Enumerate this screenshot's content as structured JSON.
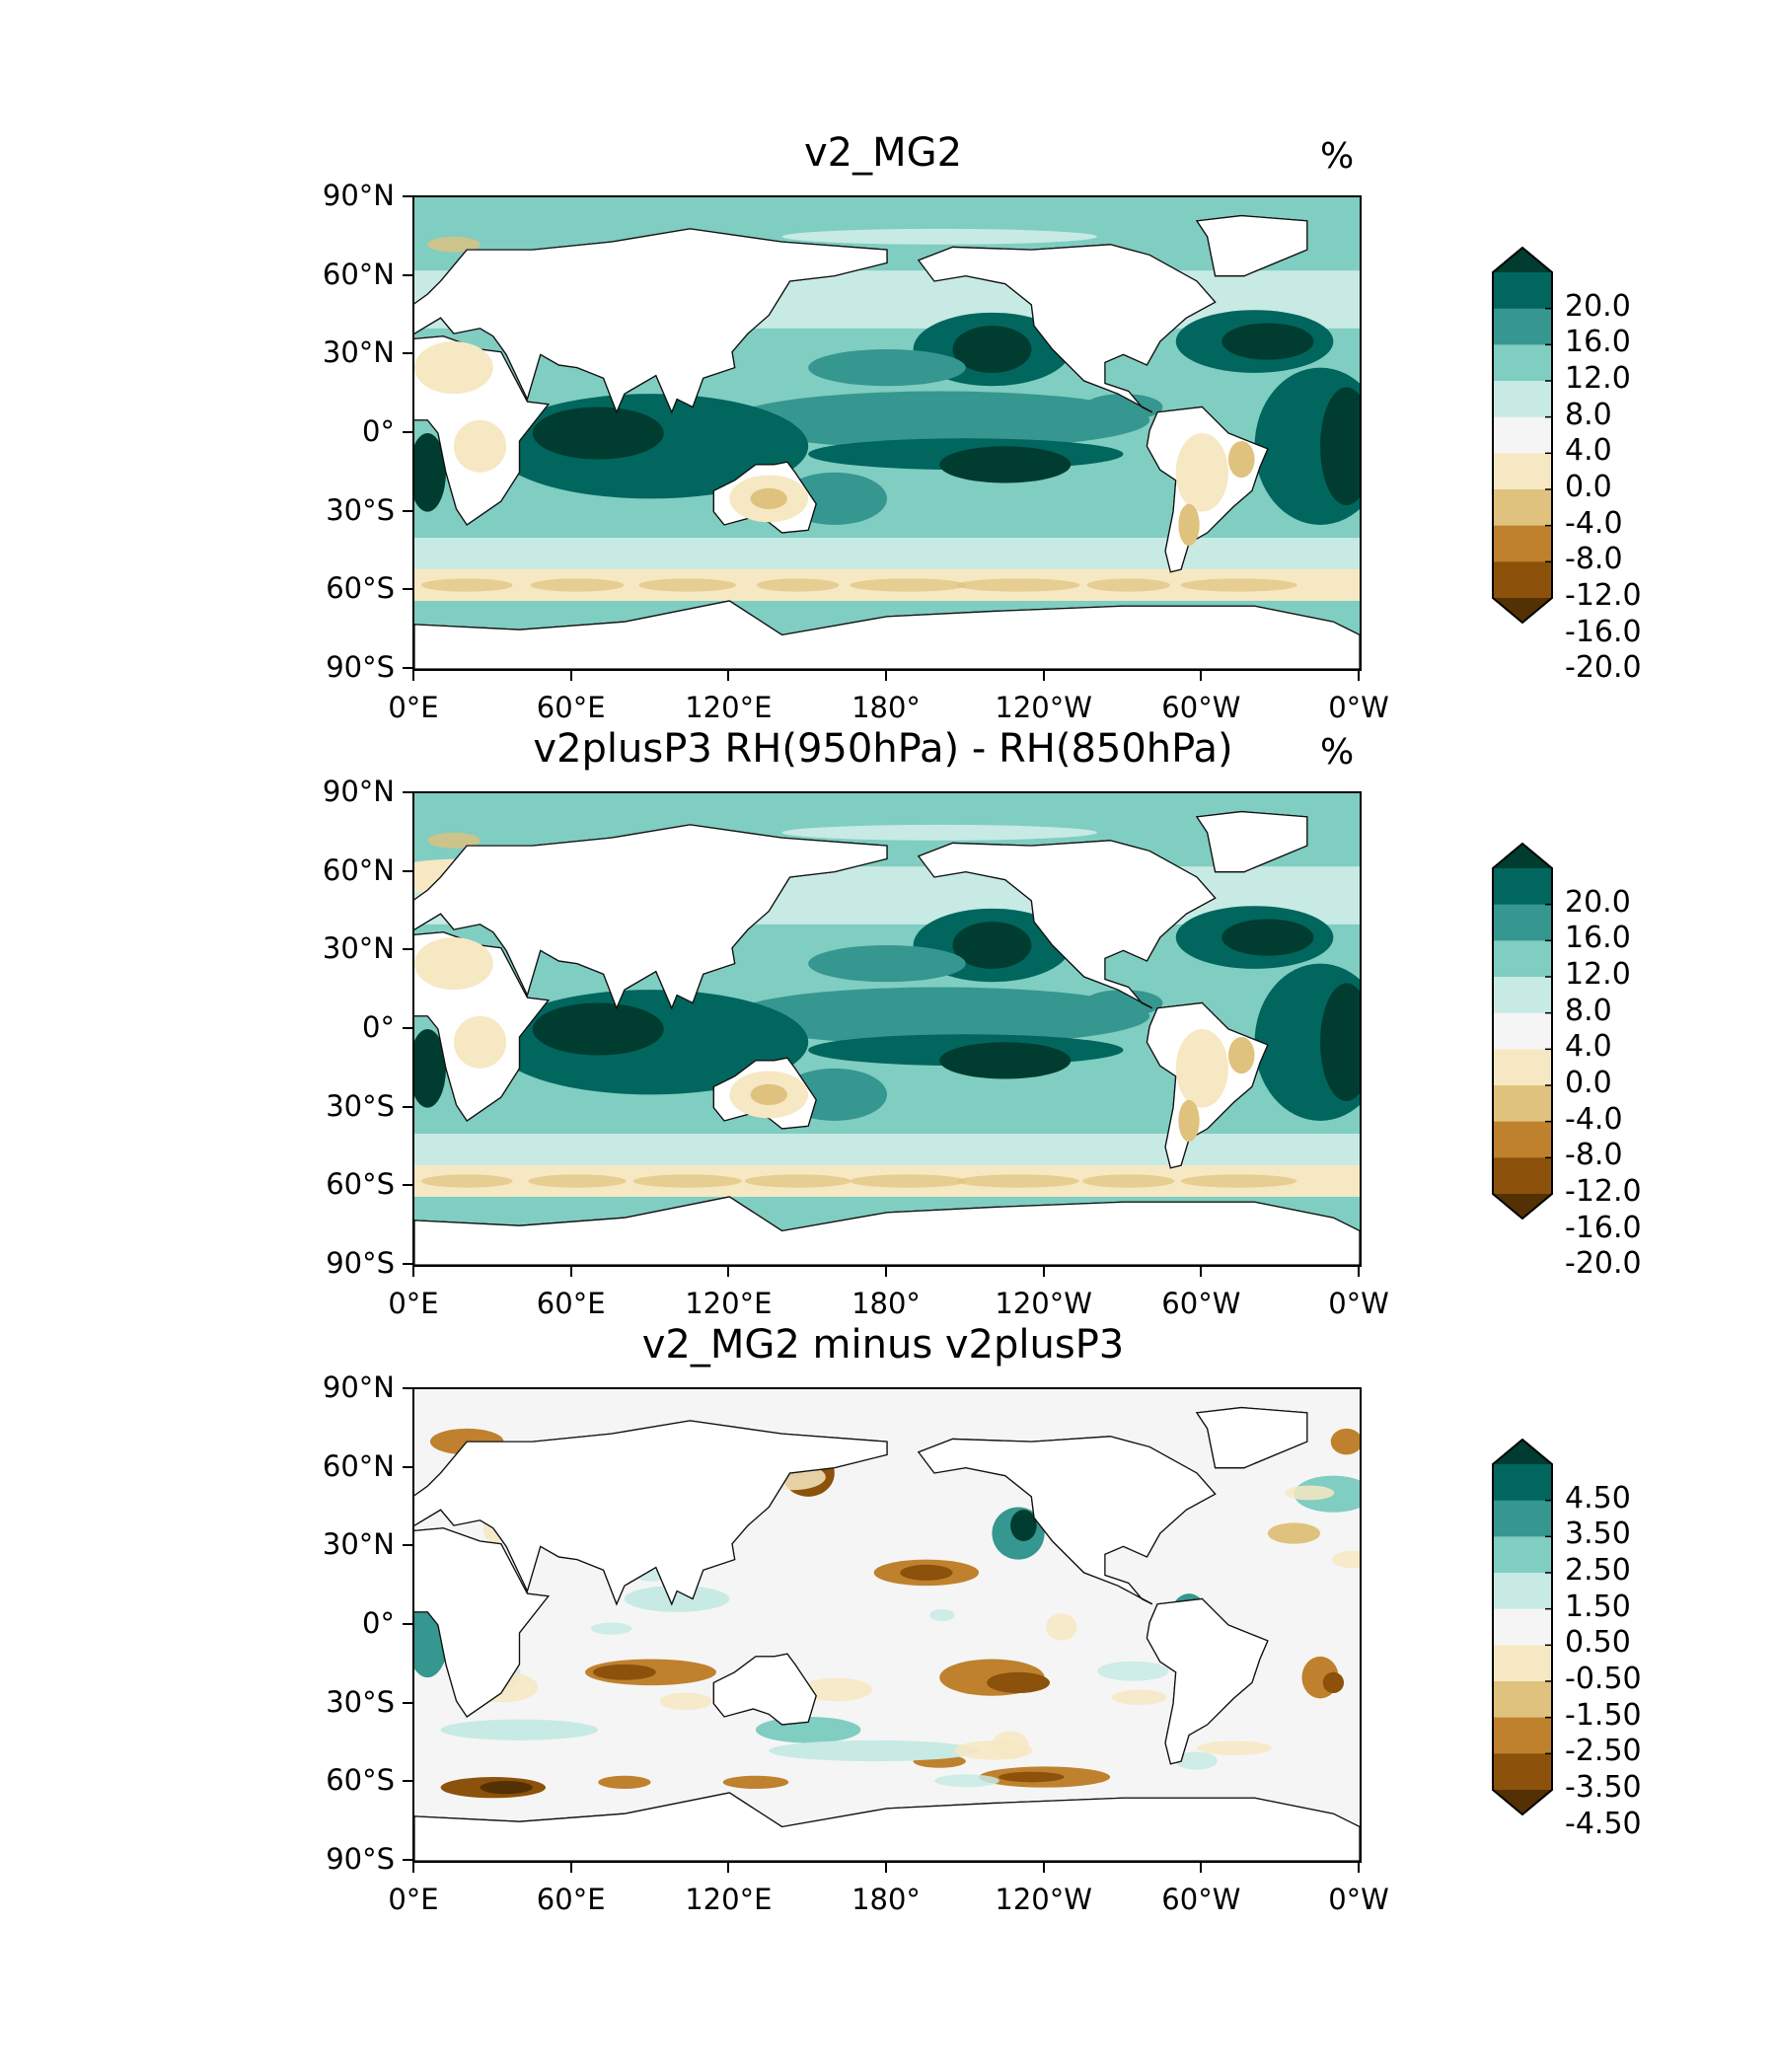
{
  "panels": [
    {
      "title": "v2_MG2",
      "unit": "%",
      "kind": "top"
    },
    {
      "title": "v2plusP3 RH(950hPa) - RH(850hPa)",
      "unit": "%",
      "kind": "mid"
    },
    {
      "title": "v2_MG2 minus v2plusP3",
      "unit": "",
      "kind": "diff"
    }
  ],
  "axes": {
    "lat_labels": [
      "90°N",
      "60°N",
      "30°N",
      "0°",
      "30°S",
      "60°S",
      "90°S"
    ],
    "lon_labels": [
      "0°E",
      "60°E",
      "120°E",
      "180°",
      "120°W",
      "60°W",
      "0°W"
    ]
  },
  "colorbars": {
    "main": {
      "labels": [
        "20.0",
        "16.0",
        "12.0",
        "8.0",
        "4.0",
        "0.0",
        "-4.0",
        "-8.0",
        "-12.0",
        "-16.0",
        "-20.0"
      ],
      "colors": [
        "#003c30",
        "#01665e",
        "#35978f",
        "#80cdc1",
        "#c7eae5",
        "#f5f5f5",
        "#f6e8c3",
        "#dfc27d",
        "#bf812d",
        "#8c510a",
        "#543005"
      ]
    },
    "diff": {
      "labels": [
        "4.50",
        "3.50",
        "2.50",
        "1.50",
        "0.50",
        "-0.50",
        "-1.50",
        "-2.50",
        "-3.50",
        "-4.50"
      ],
      "colors": [
        "#003c30",
        "#01665e",
        "#35978f",
        "#80cdc1",
        "#c7eae5",
        "#f5f5f5",
        "#f6e8c3",
        "#dfc27d",
        "#bf812d",
        "#8c510a",
        "#543005"
      ]
    }
  }
}
